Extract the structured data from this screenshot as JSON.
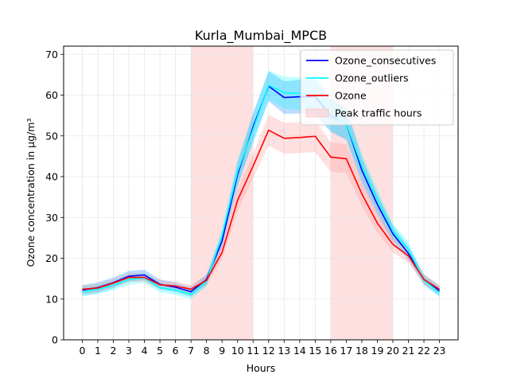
{
  "chart_data": {
    "type": "line",
    "title": "Kurla_Mumbai_MPCB",
    "xlabel": "Hours",
    "ylabel": "Ozone concentration in µg/m³",
    "x": [
      0,
      1,
      2,
      3,
      4,
      5,
      6,
      7,
      8,
      9,
      10,
      11,
      12,
      13,
      14,
      15,
      16,
      17,
      18,
      19,
      20,
      21,
      22,
      23
    ],
    "xlim": [
      -1.2,
      24.2
    ],
    "ylim": [
      0,
      72
    ],
    "yticks": [
      0,
      10,
      20,
      30,
      40,
      50,
      60,
      70
    ],
    "grid": true,
    "legend_position": "top-right",
    "shaded_regions": [
      {
        "name": "Peak traffic hours",
        "from": 7,
        "to": 11,
        "color": "#ffcccc"
      },
      {
        "name": "Peak traffic hours",
        "from": 16,
        "to": 20,
        "color": "#ffcccc"
      }
    ],
    "series": [
      {
        "name": "Ozone_consecutives",
        "color": "#0000ff",
        "band_color": "#1e90ff",
        "values": [
          12.2,
          12.8,
          14.0,
          15.6,
          15.9,
          13.6,
          12.9,
          11.8,
          14.8,
          24.2,
          40.5,
          52.2,
          62.2,
          59.4,
          59.6,
          59.6,
          55.0,
          53.0,
          41.6,
          33.2,
          26.0,
          21.2,
          14.8,
          12.0
        ],
        "lower": [
          11.0,
          11.5,
          12.7,
          14.3,
          14.6,
          12.4,
          11.7,
          10.6,
          13.5,
          22.5,
          37.5,
          48.8,
          58.5,
          55.4,
          55.5,
          55.2,
          51.0,
          49.0,
          38.5,
          30.8,
          24.0,
          19.5,
          13.5,
          10.8
        ],
        "upper": [
          13.4,
          14.1,
          15.3,
          16.9,
          17.2,
          14.8,
          14.1,
          13.0,
          16.1,
          25.9,
          43.5,
          55.6,
          65.9,
          63.4,
          63.7,
          64.0,
          59.0,
          57.0,
          44.7,
          35.6,
          28.0,
          22.9,
          16.1,
          13.2
        ]
      },
      {
        "name": "Ozone_outliers",
        "color": "#00ffff",
        "band_color": "#00ffff",
        "values": [
          11.8,
          12.4,
          13.4,
          14.8,
          15.2,
          12.8,
          12.2,
          11.2,
          14.2,
          25.6,
          41.2,
          51.6,
          62.4,
          60.6,
          60.4,
          60.1,
          55.2,
          53.0,
          42.6,
          34.4,
          26.6,
          22.2,
          14.6,
          11.6
        ],
        "lower": [
          10.6,
          11.2,
          12.2,
          13.5,
          13.9,
          11.6,
          11.0,
          10.0,
          13.0,
          23.8,
          38.2,
          48.0,
          58.8,
          56.7,
          56.4,
          56.0,
          51.2,
          49.2,
          39.5,
          31.9,
          24.6,
          20.4,
          13.4,
          10.4
        ],
        "upper": [
          13.0,
          13.6,
          14.6,
          16.1,
          16.5,
          14.0,
          13.4,
          12.4,
          15.4,
          27.4,
          44.2,
          55.2,
          66.0,
          64.5,
          64.4,
          64.2,
          59.2,
          56.8,
          45.7,
          36.9,
          28.6,
          24.0,
          15.8,
          12.8
        ]
      },
      {
        "name": "Ozone",
        "color": "#ff0000",
        "band_color": "#ff9999",
        "values": [
          12.4,
          12.7,
          13.9,
          15.3,
          15.3,
          13.5,
          13.2,
          12.4,
          14.6,
          21.4,
          34.2,
          42.6,
          51.4,
          49.4,
          49.6,
          49.9,
          44.8,
          44.4,
          35.8,
          28.6,
          23.4,
          20.6,
          14.8,
          12.4
        ],
        "lower": [
          11.4,
          11.7,
          12.9,
          14.2,
          14.2,
          12.4,
          12.1,
          11.3,
          13.4,
          19.8,
          31.5,
          39.6,
          47.6,
          45.6,
          45.8,
          46.0,
          41.2,
          40.8,
          32.8,
          26.3,
          21.5,
          18.9,
          13.6,
          11.3
        ],
        "upper": [
          13.4,
          13.7,
          14.9,
          16.4,
          16.4,
          14.6,
          14.3,
          13.5,
          15.8,
          23.0,
          36.9,
          45.6,
          55.2,
          53.2,
          53.4,
          53.8,
          48.4,
          48.0,
          38.8,
          30.9,
          25.3,
          22.3,
          16.0,
          13.5
        ]
      }
    ],
    "legend": [
      {
        "label": "Ozone_consecutives",
        "kind": "line",
        "color": "#0000ff"
      },
      {
        "label": "Ozone_outliers",
        "kind": "line",
        "color": "#00ffff"
      },
      {
        "label": "Ozone",
        "kind": "line",
        "color": "#ff0000"
      },
      {
        "label": "Peak traffic hours",
        "kind": "patch",
        "color": "#ffcccc"
      }
    ]
  }
}
